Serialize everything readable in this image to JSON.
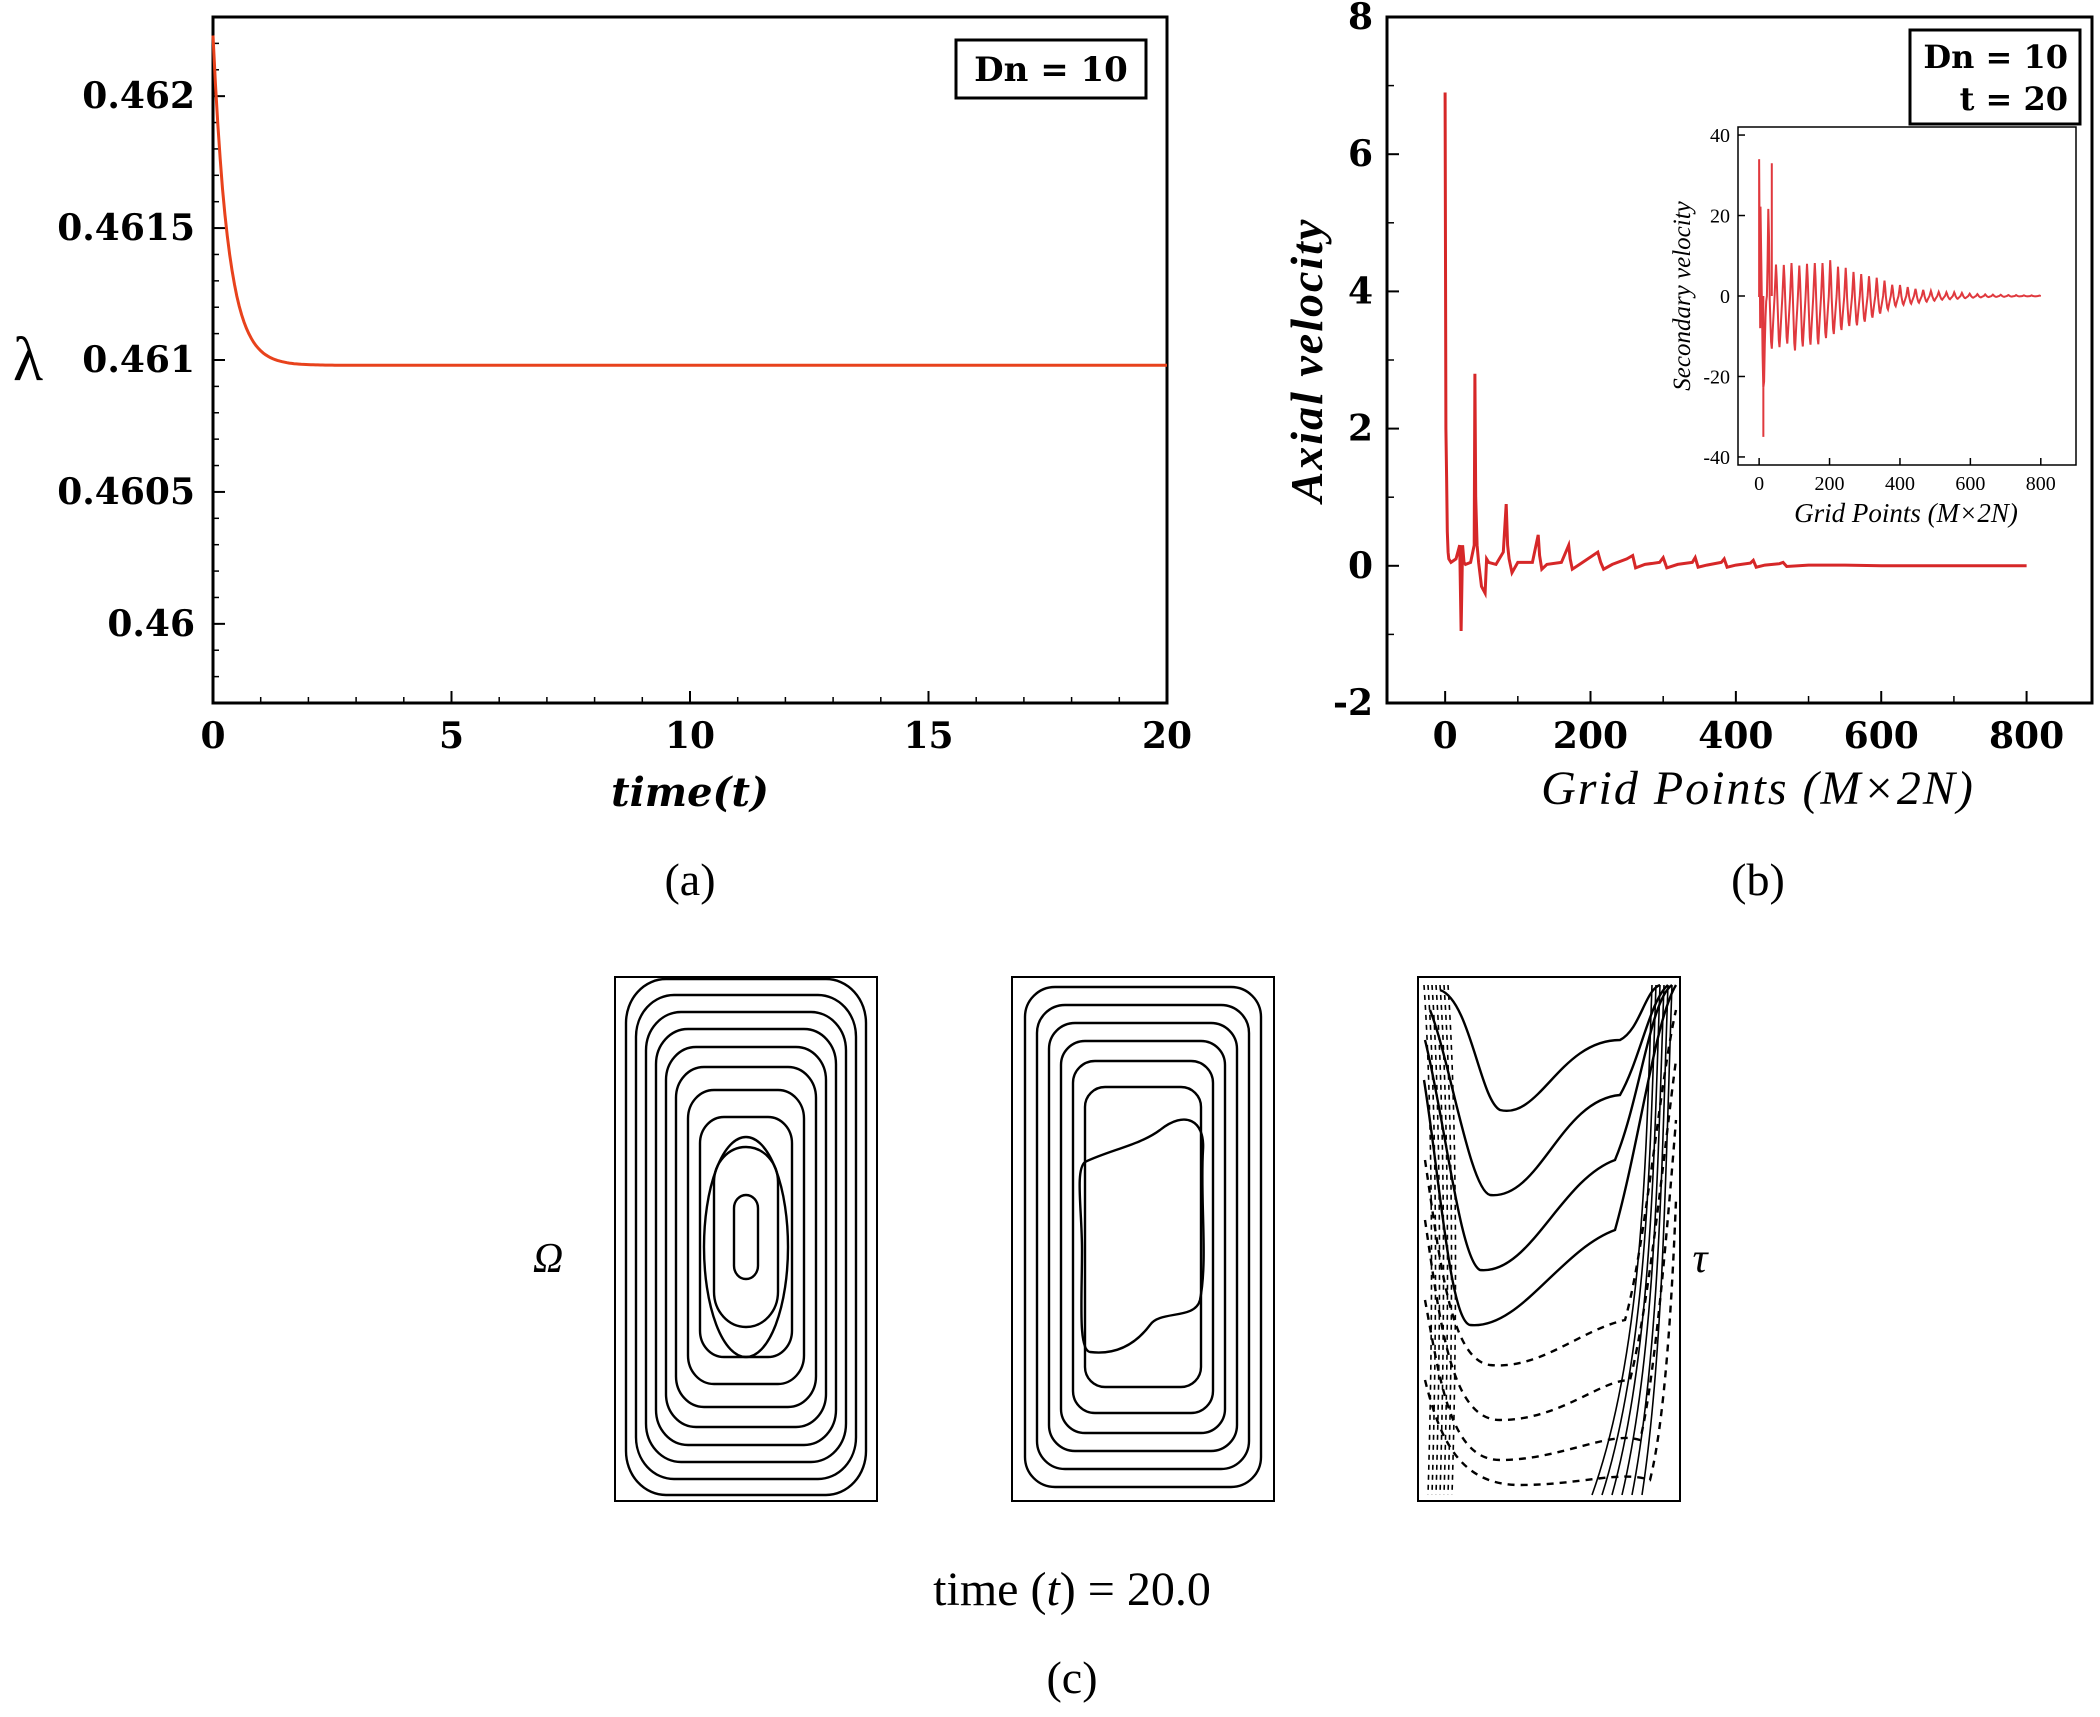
{
  "panel_a": {
    "label": "(a)",
    "legend": "Dn = 10",
    "chart_data": {
      "type": "line",
      "title": "",
      "xlabel": "time(t)",
      "ylabel": "λ",
      "xlim": [
        0,
        20
      ],
      "ylim": [
        0.4597,
        0.4623
      ],
      "xticks": [
        0,
        5,
        10,
        15,
        20
      ],
      "yticks": [
        0.462,
        0.4615,
        0.461,
        0.4605,
        0.46
      ],
      "xtick_labels": [
        "0",
        "5",
        "10",
        "15",
        "20"
      ],
      "ytick_labels": [
        "0.462",
        "0.4615",
        "0.461",
        "0.4605",
        "0.46"
      ],
      "series": [
        {
          "name": "λ(t)",
          "color": "#e8421c",
          "x": [
            0,
            0.1,
            0.2,
            0.3,
            0.4,
            0.5,
            0.6,
            0.8,
            1.0,
            1.2,
            1.5,
            2.0,
            2.5,
            3,
            5,
            10,
            15,
            20
          ],
          "y": [
            0.46223,
            0.46197,
            0.46173,
            0.46155,
            0.4614,
            0.46129,
            0.46121,
            0.4611,
            0.46104,
            0.46101,
            0.46099,
            0.46098,
            0.46098,
            0.46098,
            0.46098,
            0.46098,
            0.46098,
            0.46098
          ]
        }
      ]
    }
  },
  "panel_b": {
    "label": "(b)",
    "legend_line1": "Dn = 10",
    "legend_line2": "t = 20",
    "chart_data": {
      "type": "line",
      "title": "",
      "xlabel": "Grid Points (M×2N)",
      "ylabel": "Axial velocity",
      "xlim": [
        -80,
        890
      ],
      "ylim": [
        -2,
        8
      ],
      "xticks": [
        0,
        200,
        400,
        600,
        800
      ],
      "yticks": [
        -2,
        0,
        2,
        4,
        6,
        8
      ],
      "xtick_labels": [
        "0",
        "200",
        "400",
        "600",
        "800"
      ],
      "ytick_labels": [
        "-2",
        "0",
        "2",
        "4",
        "6",
        "8"
      ],
      "series": [
        {
          "name": "Axial velocity",
          "color": "#d62728",
          "x": [
            0,
            1,
            2,
            3,
            4,
            5,
            8,
            15,
            20,
            22,
            24,
            26,
            28,
            35,
            40,
            41,
            42,
            44,
            46,
            50,
            55,
            57,
            60,
            70,
            80,
            84,
            86,
            88,
            92,
            100,
            120,
            128,
            130,
            133,
            140,
            160,
            170,
            172,
            175,
            185,
            210,
            214,
            218,
            230,
            250,
            258,
            262,
            275,
            295,
            300,
            305,
            320,
            340,
            344,
            348,
            360,
            380,
            384,
            388,
            400,
            420,
            424,
            428,
            440,
            460,
            465,
            470,
            500,
            550,
            600,
            650,
            700,
            750,
            800
          ],
          "y": [
            6.9,
            2.0,
            1.3,
            0.5,
            0.2,
            0.1,
            0.05,
            0.1,
            0.3,
            -0.95,
            0.3,
            0.05,
            0.02,
            0.05,
            0.3,
            2.8,
            1.0,
            0.3,
            0.05,
            -0.3,
            -0.4,
            0.1,
            0.05,
            0.02,
            0.2,
            0.9,
            0.3,
            0.1,
            -0.1,
            0.05,
            0.05,
            0.45,
            0.15,
            -0.05,
            0.02,
            0.05,
            0.3,
            0.1,
            -0.05,
            0.02,
            0.2,
            0.05,
            -0.05,
            0.02,
            0.1,
            0.15,
            -0.03,
            0.02,
            0.05,
            0.12,
            -0.03,
            0.02,
            0.05,
            0.12,
            -0.02,
            0.01,
            0.05,
            0.1,
            -0.02,
            0.01,
            0.04,
            0.08,
            -0.02,
            0.01,
            0.03,
            0.05,
            -0.01,
            0.01,
            0.01,
            0,
            0,
            0,
            0,
            0
          ]
        }
      ],
      "inset": {
        "xlabel": "Grid Points (M×2N)",
        "ylabel": "Secondary velocity",
        "xlim": [
          -60,
          900
        ],
        "ylim": [
          -42,
          42
        ],
        "xticks": [
          0,
          200,
          400,
          600,
          800
        ],
        "yticks": [
          -40,
          -20,
          0,
          20,
          40
        ],
        "xtick_labels": [
          "0",
          "200",
          "400",
          "600",
          "800"
        ],
        "ytick_labels": [
          "-40",
          "-20",
          "0",
          "20",
          "40"
        ],
        "series": [
          {
            "name": "Secondary velocity",
            "color": "#e0393e",
            "envelope_x": [
              0,
              10,
              20,
              30,
              40,
              60,
              80,
              100,
              120,
              140,
              160,
              180,
              200,
              220,
              240,
              260,
              280,
              300,
              320,
              340,
              360,
              380,
              400,
              440,
              480,
              520,
              560,
              600,
              650,
              700,
              750,
              800
            ],
            "envelope_upper": [
              34,
              10,
              10,
              33,
              9,
              8,
              9,
              9,
              8,
              9,
              9,
              9,
              10,
              8,
              8,
              7,
              6,
              6,
              5,
              5,
              4,
              3,
              3,
              2,
              1.5,
              1,
              1,
              0.6,
              0.4,
              0.3,
              0.2,
              0.1
            ],
            "envelope_lower": [
              -8,
              -35,
              -6,
              -15,
              -14,
              -14,
              -13,
              -15,
              -14,
              -13,
              -14,
              -12,
              -11,
              -10,
              -9,
              -8,
              -8,
              -7,
              -6,
              -5,
              -4,
              -3,
              -2.5,
              -2,
              -1.5,
              -1,
              -0.8,
              -0.5,
              -0.3,
              -0.2,
              -0.1,
              -0.1
            ]
          }
        ]
      }
    }
  },
  "panel_c": {
    "label": "(c)",
    "caption_prefix": "time (",
    "caption_var": "t",
    "caption_suffix": ") = 20.0",
    "omega_label": "Ω",
    "tau_label": "τ"
  }
}
